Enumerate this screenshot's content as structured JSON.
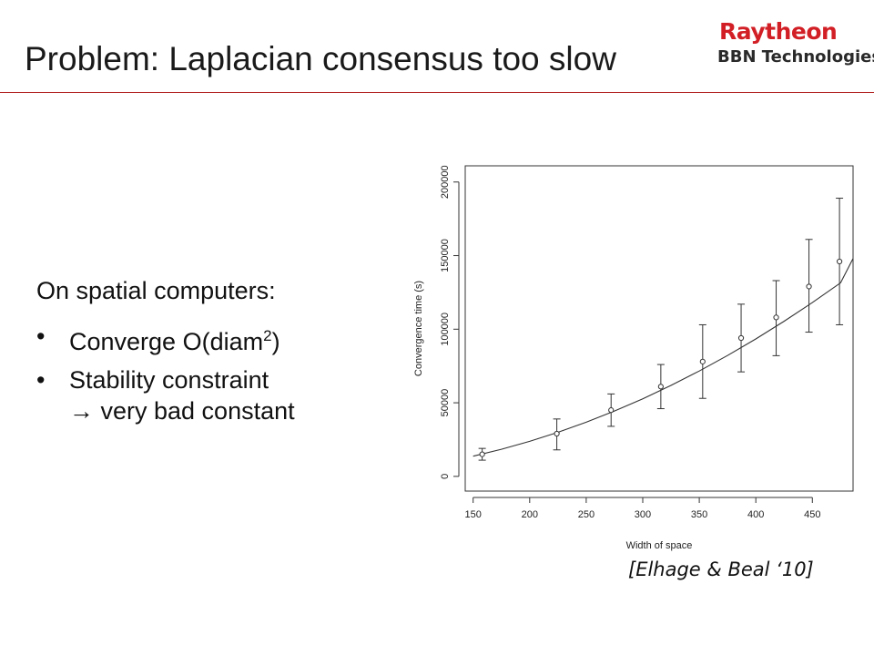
{
  "slide": {
    "title": "Problem: Laplacian consensus too slow",
    "logo": {
      "brand": "Raytheon",
      "division": "BBN Technologies"
    },
    "body": {
      "heading": "On spatial computers:",
      "bullets": [
        {
          "bullet": "•",
          "text": "Converge O(diam",
          "sup": "2",
          "suffix": ")"
        },
        {
          "bullet": "•",
          "text": "Stability constraint",
          "cont_arrow": "→",
          "cont": " very bad constant"
        }
      ]
    },
    "citation": "[Elhage & Beal ‘10]"
  },
  "chart_data": {
    "type": "scatter",
    "xlabel": "Width of space",
    "ylabel": "Convergence time (s)",
    "xlim": [
      143,
      486
    ],
    "ylim": [
      -10000,
      211000
    ],
    "xticks": [
      150,
      200,
      250,
      300,
      350,
      400,
      450
    ],
    "xtick_labels": [
      "150",
      "200",
      "250",
      "300",
      "350",
      "400",
      "450"
    ],
    "yticks": [
      0,
      50000,
      100000,
      150000,
      200000
    ],
    "ytick_labels": [
      "0",
      "50000",
      "100000",
      "150000",
      "200000"
    ],
    "grid": false,
    "points": [
      {
        "x": 158,
        "y": 15000,
        "err_low": 11000,
        "err_high": 19000
      },
      {
        "x": 224,
        "y": 29000,
        "err_low": 18000,
        "err_high": 39000
      },
      {
        "x": 272,
        "y": 45000,
        "err_low": 34000,
        "err_high": 56000
      },
      {
        "x": 316,
        "y": 61000,
        "err_low": 46000,
        "err_high": 76000
      },
      {
        "x": 353,
        "y": 78000,
        "err_low": 53000,
        "err_high": 103000
      },
      {
        "x": 387,
        "y": 94000,
        "err_low": 71000,
        "err_high": 117000
      },
      {
        "x": 418,
        "y": 108000,
        "err_low": 82000,
        "err_high": 133000
      },
      {
        "x": 447,
        "y": 129000,
        "err_low": 98000,
        "err_high": 161000
      },
      {
        "x": 474,
        "y": 146000,
        "err_low": 103000,
        "err_high": 189000
      }
    ],
    "fit_curve": {
      "x": [
        150,
        175,
        200,
        225,
        250,
        275,
        300,
        325,
        350,
        375,
        400,
        425,
        450,
        475,
        486
      ],
      "y": [
        13700,
        18400,
        23800,
        29900,
        36800,
        44400,
        52700,
        61800,
        71600,
        82100,
        93400,
        105400,
        118100,
        131500,
        148000
      ]
    }
  }
}
